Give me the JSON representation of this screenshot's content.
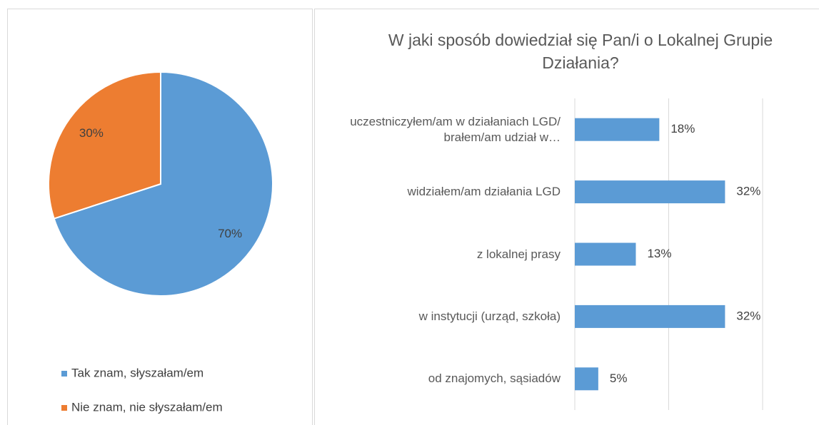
{
  "chart_data": [
    {
      "type": "pie",
      "categories": [
        "Tak znam, słyszałam/em",
        "Nie znam, nie słyszałam/em"
      ],
      "values": [
        70,
        30
      ],
      "value_labels": [
        "70%",
        "30%"
      ],
      "colors": [
        "#5b9bd5",
        "#ed7d31"
      ],
      "legend": "bottom"
    },
    {
      "type": "hbar",
      "title": "W jaki sposób dowiedział się Pan/i o Lokalnej Grupie Działania?",
      "categories": [
        "uczestniczyłem/am w działaniach LGD/ brałem/am udział w…",
        "widziałem/am działania LGD",
        "z lokalnej prasy",
        "w instytucji (urząd, szkoła)",
        "od znajomych, sąsiadów"
      ],
      "values": [
        18,
        32,
        13,
        32,
        5
      ],
      "value_labels": [
        "18%",
        "32%",
        "13%",
        "32%",
        "5%"
      ],
      "color": "#5b9bd5",
      "xlim": [
        0,
        40
      ],
      "xticks": [
        0,
        20,
        40
      ],
      "grid": true
    }
  ]
}
